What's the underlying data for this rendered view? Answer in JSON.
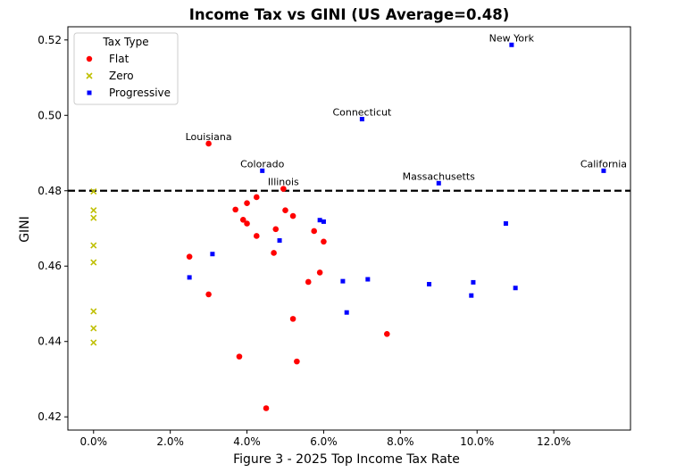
{
  "chart_data": {
    "type": "scatter",
    "title": "Income Tax vs GINI (US Average=0.48)",
    "xlabel": "Figure 3 - 2025 Top Income Tax Rate",
    "ylabel": "GINI",
    "xlim": [
      -0.0067,
      0.14
    ],
    "ylim": [
      0.4165,
      0.5235
    ],
    "xticks": [
      0,
      0.02,
      0.04,
      0.06,
      0.08,
      0.1,
      0.12
    ],
    "xtick_labels": [
      "0.0%",
      "2.0%",
      "4.0%",
      "6.0%",
      "8.0%",
      "10.0%",
      "12.0%"
    ],
    "yticks": [
      0.42,
      0.44,
      0.46,
      0.48,
      0.5,
      0.52
    ],
    "ytick_labels": [
      "0.42",
      "0.44",
      "0.46",
      "0.48",
      "0.50",
      "0.52"
    ],
    "reference_line": {
      "y": 0.48,
      "style": "dashed",
      "color": "#000000"
    },
    "legend": {
      "title": "Tax Type",
      "location": "upper-left",
      "entries": [
        {
          "name": "Flat",
          "marker": "circle",
          "color": "#ff0000"
        },
        {
          "name": "Zero",
          "marker": "x",
          "color": "#bfbf00"
        },
        {
          "name": "Progressive",
          "marker": "square",
          "color": "#0000ff"
        }
      ]
    },
    "series": [
      {
        "name": "Flat",
        "marker": "circle",
        "color": "#ff0000",
        "points": [
          [
            0.025,
            0.4625
          ],
          [
            0.03,
            0.4525
          ],
          [
            0.03,
            0.4925
          ],
          [
            0.037,
            0.475
          ],
          [
            0.038,
            0.436
          ],
          [
            0.039,
            0.4723
          ],
          [
            0.04,
            0.4767
          ],
          [
            0.04,
            0.4713
          ],
          [
            0.0425,
            0.4783
          ],
          [
            0.0425,
            0.468
          ],
          [
            0.045,
            0.4223
          ],
          [
            0.047,
            0.4635
          ],
          [
            0.0475,
            0.4698
          ],
          [
            0.0495,
            0.4805
          ],
          [
            0.05,
            0.4748
          ],
          [
            0.052,
            0.4733
          ],
          [
            0.052,
            0.446
          ],
          [
            0.053,
            0.4347
          ],
          [
            0.056,
            0.4558
          ],
          [
            0.0575,
            0.4693
          ],
          [
            0.059,
            0.4583
          ],
          [
            0.06,
            0.4665
          ],
          [
            0.0765,
            0.442
          ]
        ]
      },
      {
        "name": "Zero",
        "marker": "x",
        "color": "#bfbf00",
        "points": [
          [
            0,
            0.4798
          ],
          [
            0,
            0.4748
          ],
          [
            0,
            0.4728
          ],
          [
            0,
            0.4655
          ],
          [
            0,
            0.461
          ],
          [
            0,
            0.448
          ],
          [
            0,
            0.4435
          ],
          [
            0,
            0.4397
          ]
        ]
      },
      {
        "name": "Progressive",
        "marker": "square",
        "color": "#0000ff",
        "points": [
          [
            0.025,
            0.457
          ],
          [
            0.031,
            0.4632
          ],
          [
            0.044,
            0.4853
          ],
          [
            0.0485,
            0.4668
          ],
          [
            0.059,
            0.4722
          ],
          [
            0.06,
            0.4718
          ],
          [
            0.065,
            0.456
          ],
          [
            0.066,
            0.4477
          ],
          [
            0.07,
            0.499
          ],
          [
            0.0715,
            0.4565
          ],
          [
            0.0875,
            0.4552
          ],
          [
            0.09,
            0.482
          ],
          [
            0.0985,
            0.4522
          ],
          [
            0.099,
            0.4557
          ],
          [
            0.1075,
            0.4713
          ],
          [
            0.109,
            0.5187
          ],
          [
            0.11,
            0.4542
          ],
          [
            0.133,
            0.4853
          ]
        ]
      }
    ],
    "annotations": [
      {
        "text": "New York",
        "x": 0.109,
        "y": 0.5187
      },
      {
        "text": "Connecticut",
        "x": 0.07,
        "y": 0.499
      },
      {
        "text": "Louisiana",
        "x": 0.03,
        "y": 0.4925
      },
      {
        "text": "Colorado",
        "x": 0.044,
        "y": 0.4853
      },
      {
        "text": "California",
        "x": 0.133,
        "y": 0.4853
      },
      {
        "text": "Massachusetts",
        "x": 0.09,
        "y": 0.482
      },
      {
        "text": "Illinois",
        "x": 0.0495,
        "y": 0.4805
      }
    ]
  }
}
